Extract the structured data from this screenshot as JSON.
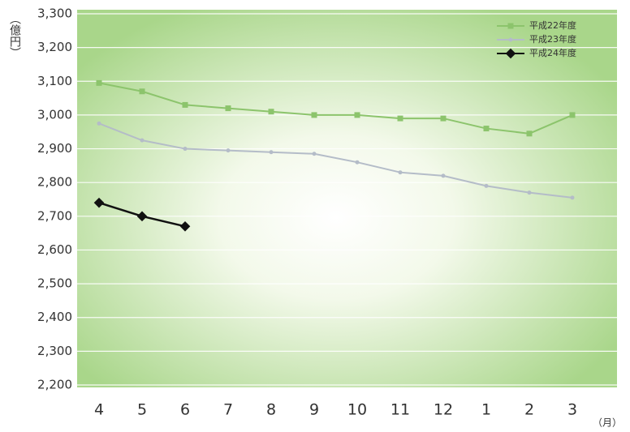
{
  "chart_data": {
    "type": "line",
    "ylabel": "（億円）",
    "xlabel": "（月）",
    "categories": [
      "4",
      "5",
      "6",
      "7",
      "8",
      "9",
      "10",
      "11",
      "12",
      "1",
      "2",
      "3"
    ],
    "series": [
      {
        "name": "平成22年度",
        "color": "#8cc46c",
        "marker": "square",
        "values": [
          3095,
          3070,
          3030,
          3020,
          3010,
          3000,
          3000,
          2990,
          2990,
          2960,
          2945,
          3000
        ]
      },
      {
        "name": "平成23年度",
        "color": "#b4bcc8",
        "marker": "circle",
        "values": [
          2975,
          2925,
          2900,
          2895,
          2890,
          2885,
          2860,
          2830,
          2820,
          2790,
          2770,
          2755
        ]
      },
      {
        "name": "平成24年度",
        "color": "#111111",
        "marker": "diamond",
        "values": [
          2740,
          2700,
          2670,
          null,
          null,
          null,
          null,
          null,
          null,
          null,
          null,
          null
        ]
      }
    ],
    "ylim": [
      2200,
      3300
    ],
    "yticks": [
      {
        "value": 2200,
        "label": "2,200"
      },
      {
        "value": 2300,
        "label": "2,300"
      },
      {
        "value": 2400,
        "label": "2,400"
      },
      {
        "value": 2500,
        "label": "2,500"
      },
      {
        "value": 2600,
        "label": "2,600"
      },
      {
        "value": 2700,
        "label": "2,700"
      },
      {
        "value": 2800,
        "label": "2,800"
      },
      {
        "value": 2900,
        "label": "2,900"
      },
      {
        "value": 3000,
        "label": "3,000"
      },
      {
        "value": 3100,
        "label": "3,100"
      },
      {
        "value": 3200,
        "label": "3,200"
      },
      {
        "value": 3300,
        "label": "3,300"
      }
    ],
    "grid": true,
    "legend": "top-right"
  }
}
